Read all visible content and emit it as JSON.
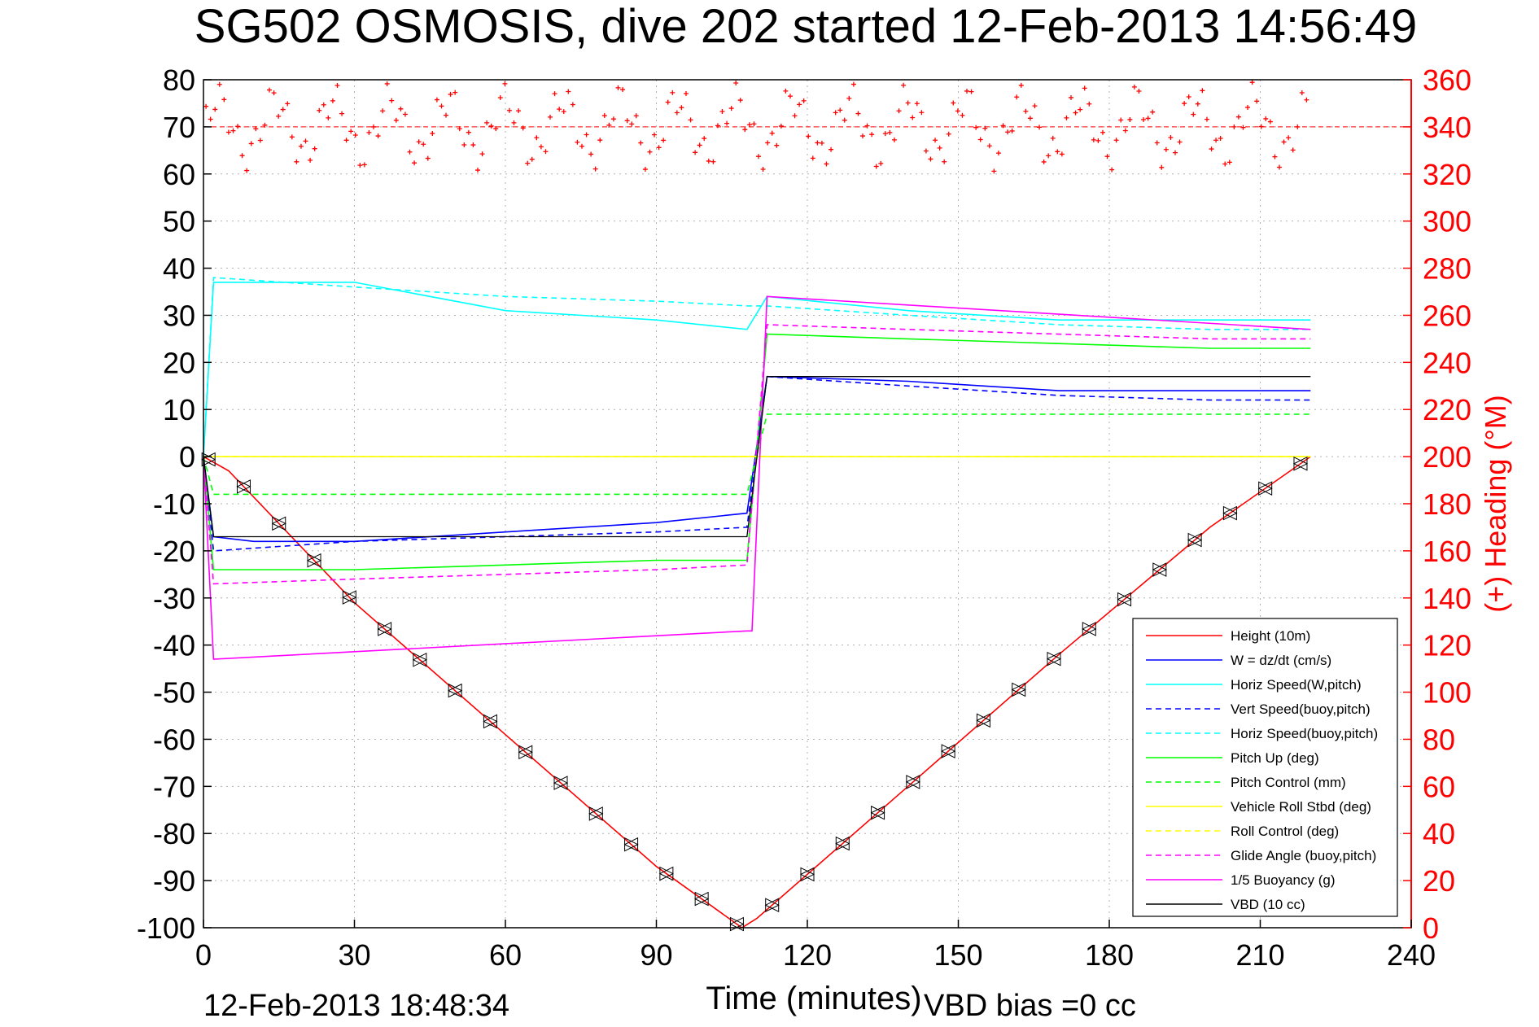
{
  "chart_data": {
    "type": "line",
    "title": "SG502 OSMOSIS, dive 202 started 12-Feb-2013 14:56:49",
    "xlabel": "Time (minutes)",
    "ylabel": "",
    "ylabel_right": "(+) Heading (°M)",
    "xlim": [
      0,
      240
    ],
    "ylim": [
      -100,
      80
    ],
    "ylim_right": [
      0,
      360
    ],
    "x_ticks": [
      "0",
      "30",
      "60",
      "90",
      "120",
      "150",
      "180",
      "210",
      "240"
    ],
    "y_ticks": [
      "80",
      "70",
      "60",
      "50",
      "40",
      "30",
      "20",
      "10",
      "0",
      "-10",
      "-20",
      "-30",
      "-40",
      "-50",
      "-60",
      "-70",
      "-80",
      "-90",
      "-100"
    ],
    "y_right_ticks": [
      "360",
      "340",
      "320",
      "300",
      "280",
      "260",
      "240",
      "220",
      "200",
      "180",
      "160",
      "140",
      "120",
      "100",
      "80",
      "60",
      "40",
      "20",
      "0"
    ],
    "grid": true,
    "legend_position": "bottom-right",
    "footer_left": "12-Feb-2013 18:48:34",
    "footer_right": "VBD bias =0 cc",
    "heading_mean": 340,
    "series": [
      {
        "name": "Height (10m)",
        "color": "#ff0000",
        "dash": "solid",
        "x": [
          0,
          5,
          30,
          60,
          90,
          107,
          110,
          140,
          170,
          200,
          220
        ],
        "y": [
          0,
          -3,
          -31,
          -59,
          -87,
          -100,
          -98,
          -70,
          -42,
          -15,
          0
        ]
      },
      {
        "name": "W = dz/dt (cm/s)",
        "color": "#0000ff",
        "dash": "solid",
        "x": [
          0,
          2,
          10,
          30,
          60,
          90,
          108,
          112,
          140,
          170,
          200,
          220
        ],
        "y": [
          0,
          -17,
          -18,
          -18,
          -16,
          -14,
          -12,
          17,
          16,
          14,
          14,
          14
        ]
      },
      {
        "name": "Horiz Speed(W,pitch)",
        "color": "#00ffff",
        "dash": "solid",
        "x": [
          0,
          2,
          30,
          60,
          90,
          108,
          112,
          140,
          170,
          200,
          220
        ],
        "y": [
          0,
          37,
          37,
          31,
          29,
          27,
          34,
          31,
          29,
          29,
          29
        ]
      },
      {
        "name": "Vert Speed(buoy,pitch)",
        "color": "#0000ff",
        "dash": "dashed",
        "x": [
          0,
          2,
          30,
          60,
          90,
          108,
          112,
          140,
          170,
          200,
          220
        ],
        "y": [
          0,
          -20,
          -18,
          -17,
          -16,
          -15,
          17,
          15,
          13,
          12,
          12
        ]
      },
      {
        "name": "Horiz Speed(buoy,pitch)",
        "color": "#00ffff",
        "dash": "dashed",
        "x": [
          0,
          2,
          30,
          60,
          90,
          108,
          112,
          140,
          170,
          200,
          220
        ],
        "y": [
          0,
          38,
          36,
          34,
          33,
          32,
          32,
          30,
          28,
          27,
          27
        ]
      },
      {
        "name": "Pitch Up (deg)",
        "color": "#00ff00",
        "dash": "solid",
        "x": [
          0,
          2,
          30,
          60,
          90,
          108,
          112,
          140,
          170,
          200,
          220
        ],
        "y": [
          0,
          -24,
          -24,
          -23,
          -22,
          -22,
          26,
          25,
          24,
          23,
          23
        ]
      },
      {
        "name": "Pitch Control (mm)",
        "color": "#00ff00",
        "dash": "dashed",
        "x": [
          0,
          2,
          108,
          112,
          220
        ],
        "y": [
          0,
          -8,
          -8,
          9,
          9
        ]
      },
      {
        "name": "Vehicle Roll Stbd (deg)",
        "color": "#ffff00",
        "dash": "solid",
        "x": [
          0,
          5,
          60,
          108,
          112,
          170,
          220
        ],
        "y": [
          0,
          0,
          0,
          0,
          0,
          0,
          0
        ]
      },
      {
        "name": "Roll Control (deg)",
        "color": "#ffff00",
        "dash": "dashed",
        "x": [
          0,
          5,
          60,
          108,
          112,
          170,
          220
        ],
        "y": [
          0,
          0,
          0,
          0,
          0,
          0,
          0
        ]
      },
      {
        "name": "Glide Angle (buoy,pitch)",
        "color": "#ff00ff",
        "dash": "dashed",
        "x": [
          0,
          2,
          30,
          60,
          90,
          108,
          112,
          140,
          170,
          200,
          220
        ],
        "y": [
          0,
          -27,
          -26,
          -25,
          -24,
          -23,
          28,
          27,
          26,
          25,
          25
        ]
      },
      {
        "name": "1/5 Buoyancy (g)",
        "color": "#ff00ff",
        "dash": "solid",
        "x": [
          0,
          2,
          108,
          109,
          112,
          220
        ],
        "y": [
          0,
          -43,
          -37,
          -37,
          34,
          27
        ]
      },
      {
        "name": "VBD (10 cc)",
        "color": "#000000",
        "dash": "solid",
        "x": [
          0,
          2,
          108,
          112,
          220
        ],
        "y": [
          0,
          -17,
          -17,
          17,
          17
        ]
      }
    ]
  }
}
